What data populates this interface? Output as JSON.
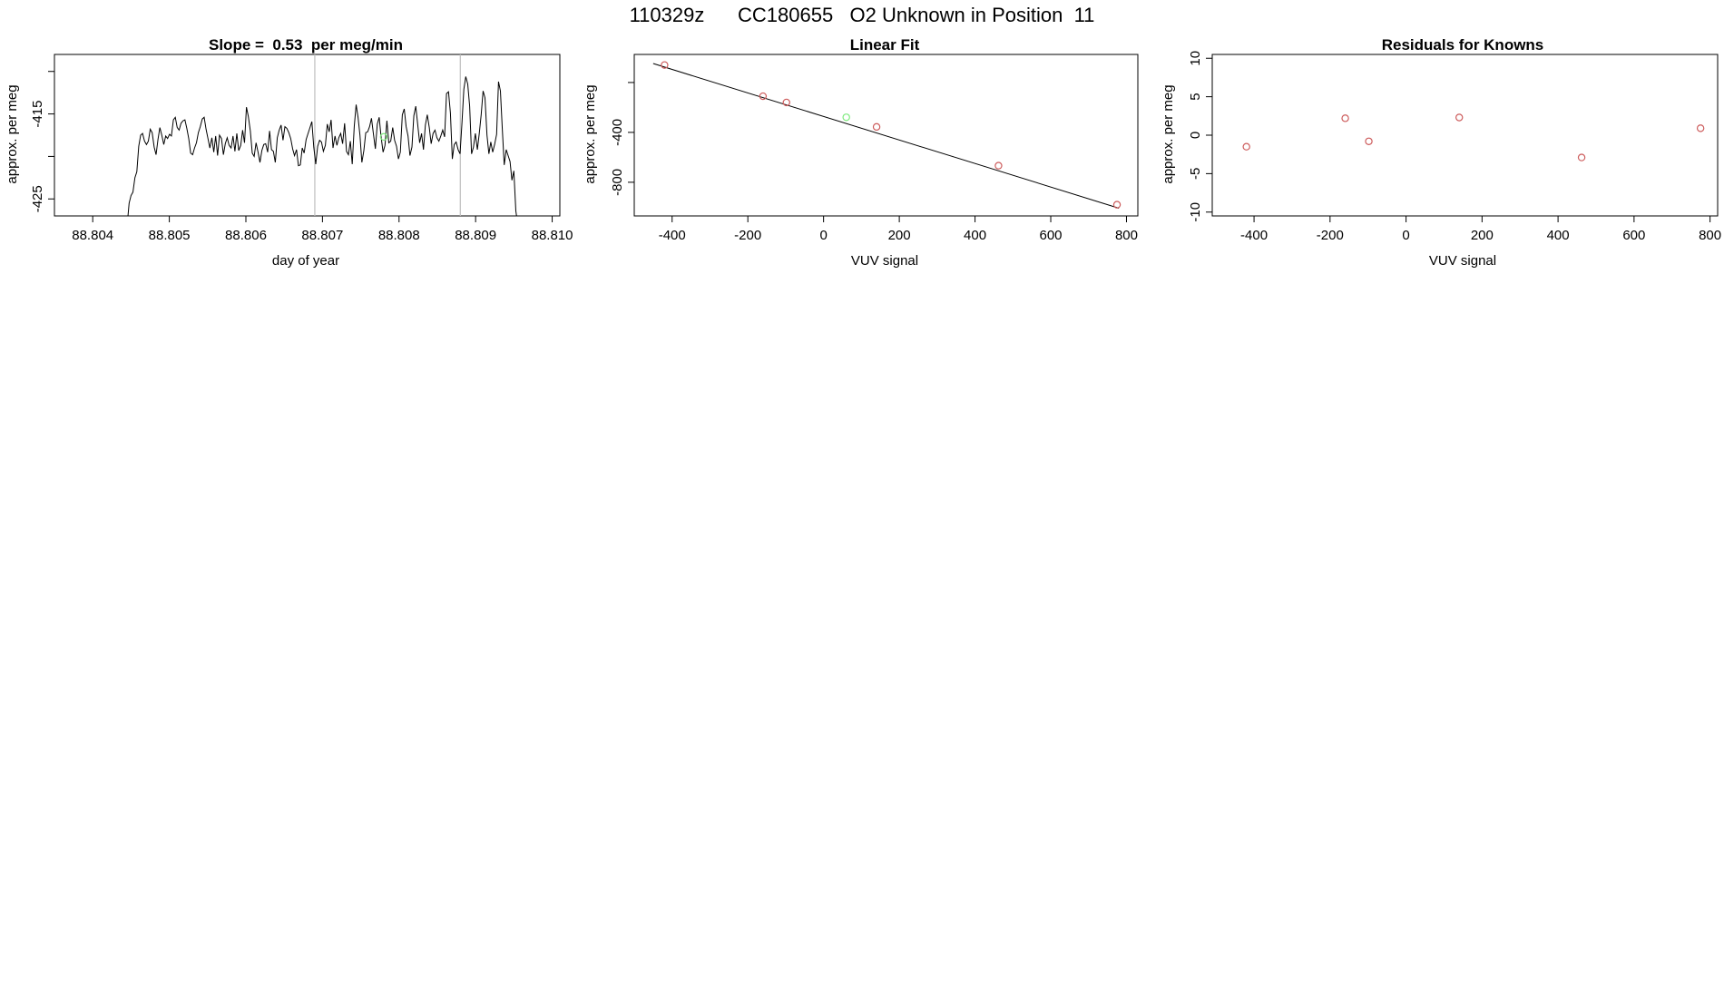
{
  "page_title": "110329z      CC180655   O2 Unknown in Position  11",
  "colors": {
    "line": "#000000",
    "known": "#cd5c5c",
    "unknown": "#7fea7f",
    "marker_line": "#bebebe"
  },
  "chart_data": [
    {
      "type": "line",
      "title": "Slope =  0.53  per meg/min",
      "xlabel": "day of year",
      "ylabel": "approx. per meg",
      "xlim": [
        88.8035,
        88.8101
      ],
      "ylim": [
        -427,
        -408
      ],
      "x_ticks": [
        "88.804",
        "88.805",
        "88.806",
        "88.807",
        "88.808",
        "88.809",
        "88.810"
      ],
      "y_ticks": [
        "",
        "-415",
        "",
        "-425"
      ],
      "y_tick_values": [
        -410,
        -415,
        -420,
        -425
      ],
      "vertical_markers": [
        88.8069,
        88.8088
      ],
      "series": [
        {
          "x_start": 88.80445,
          "x_end": 88.80955,
          "y": [
            -428,
            -425.5,
            -424.6,
            -424.2,
            -422.5,
            -421.8,
            -418.8,
            -417.5,
            -417.3,
            -418.2,
            -418.6,
            -418.2,
            -416.8,
            -417.2,
            -418.9,
            -419.8,
            -418,
            -416.6,
            -417.5,
            -418.6,
            -417.6,
            -417.9,
            -417.4,
            -417.6,
            -415.7,
            -415.4,
            -416.6,
            -416.9,
            -416.1,
            -415.8,
            -415.7,
            -416.7,
            -417.9,
            -419.6,
            -419.8,
            -419,
            -418.4,
            -417.2,
            -416.5,
            -415.6,
            -415.4,
            -416.8,
            -417.9,
            -419,
            -417.8,
            -419.5,
            -417.6,
            -419.9,
            -417.5,
            -417.9,
            -419.8,
            -418.5,
            -417.8,
            -418.7,
            -419,
            -417.6,
            -419.4,
            -417.3,
            -419.3,
            -418.7,
            -416.9,
            -418.4,
            -414.2,
            -415.3,
            -417,
            -419.6,
            -420,
            -418.4,
            -419.5,
            -420.7,
            -419.3,
            -418.6,
            -418.5,
            -419.5,
            -417,
            -419.2,
            -419.4,
            -420.7,
            -417.8,
            -416.9,
            -416.3,
            -418.1,
            -416.5,
            -416.7,
            -417.2,
            -417.9,
            -419.1,
            -419.9,
            -419.2,
            -421.1,
            -421,
            -419,
            -419.6,
            -418,
            -417.3,
            -416.6,
            -415.9,
            -418.9,
            -420.9,
            -418.8,
            -418.1,
            -418.3,
            -419.4,
            -418.7,
            -416.2,
            -417.1,
            -415.7,
            -419,
            -417.6,
            -418.7,
            -417.8,
            -417.3,
            -418.5,
            -416.1,
            -419.4,
            -419.8,
            -418.2,
            -420.9,
            -416.5,
            -413.9,
            -415.4,
            -417.5,
            -420.7,
            -419.3,
            -417.2,
            -417.1,
            -416.5,
            -415.5,
            -417.4,
            -419.1,
            -416.2,
            -415.4,
            -417.7,
            -419.5,
            -418.7,
            -415.8,
            -418.4,
            -418.2,
            -416.6,
            -418.1,
            -418.8,
            -420.3,
            -419.5,
            -415.1,
            -414.4,
            -416.5,
            -417.6,
            -419.9,
            -418.9,
            -415.2,
            -414.1,
            -416.2,
            -418.4,
            -417.3,
            -419.2,
            -416.3,
            -415.1,
            -416.6,
            -418.5,
            -417.3,
            -416.9,
            -417.8,
            -418.2,
            -417.6,
            -416.9,
            -417.7,
            -412.6,
            -412.4,
            -414.9,
            -420.3,
            -418.6,
            -418.3,
            -419.2,
            -419.7,
            -416.1,
            -412.1,
            -410.6,
            -411.5,
            -414.1,
            -419.7,
            -418.9,
            -417.3,
            -419.2,
            -417.3,
            -415.1,
            -412.3,
            -413.1,
            -417.5,
            -419.7,
            -418.3,
            -419.5,
            -418.6,
            -417.4,
            -411.2,
            -412.3,
            -416.8,
            -421,
            -419.2,
            -419.9,
            -420.6,
            -422.8,
            -421.7,
            -426.4,
            -428
          ]
        },
        {
          "name": "",
          "role": "unknown-marker",
          "x": 88.8078,
          "y": -417.7
        }
      ]
    },
    {
      "type": "scatter",
      "title": "Linear Fit",
      "xlabel": "VUV signal",
      "ylabel": "approx. per meg",
      "xlim": [
        -500,
        830
      ],
      "ylim": [
        -1070,
        225
      ],
      "x_ticks": [
        "-400",
        "-200",
        "0",
        "200",
        "400",
        "600",
        "800"
      ],
      "x_tick_values": [
        -400,
        -200,
        0,
        200,
        400,
        600,
        800
      ],
      "y_ticks": [
        "",
        "-400",
        "-800"
      ],
      "y_tick_values": [
        0,
        -400,
        -800
      ],
      "fit_line": {
        "x": [
          -450,
          780
        ],
        "y": [
          152,
          -1008
        ]
      },
      "series": [
        {
          "name": "",
          "role": "known",
          "x": [
            -420,
            -160,
            -98,
            140,
            462,
            775
          ],
          "y": [
            140,
            -110,
            -160,
            -356,
            -667,
            -980
          ]
        },
        {
          "name": "",
          "role": "unknown",
          "x": [
            60
          ],
          "y": [
            -279
          ]
        }
      ]
    },
    {
      "type": "scatter",
      "title": "Residuals for Knowns",
      "xlabel": "VUV signal",
      "ylabel": "approx. per meg",
      "xlim": [
        -510,
        820
      ],
      "ylim": [
        -10.5,
        10.5
      ],
      "x_ticks": [
        "-400",
        "-200",
        "0",
        "200",
        "400",
        "600",
        "800"
      ],
      "x_tick_values": [
        -400,
        -200,
        0,
        200,
        400,
        600,
        800
      ],
      "y_ticks": [
        "10",
        "5",
        "0",
        "-5",
        "-10"
      ],
      "y_tick_values": [
        10,
        5,
        0,
        -5,
        -10
      ],
      "series": [
        {
          "name": "",
          "role": "known",
          "x": [
            -420,
            -160,
            -98,
            140,
            462,
            775
          ],
          "y": [
            -1.5,
            2.2,
            -0.8,
            2.3,
            -2.9,
            0.9
          ]
        }
      ]
    }
  ]
}
